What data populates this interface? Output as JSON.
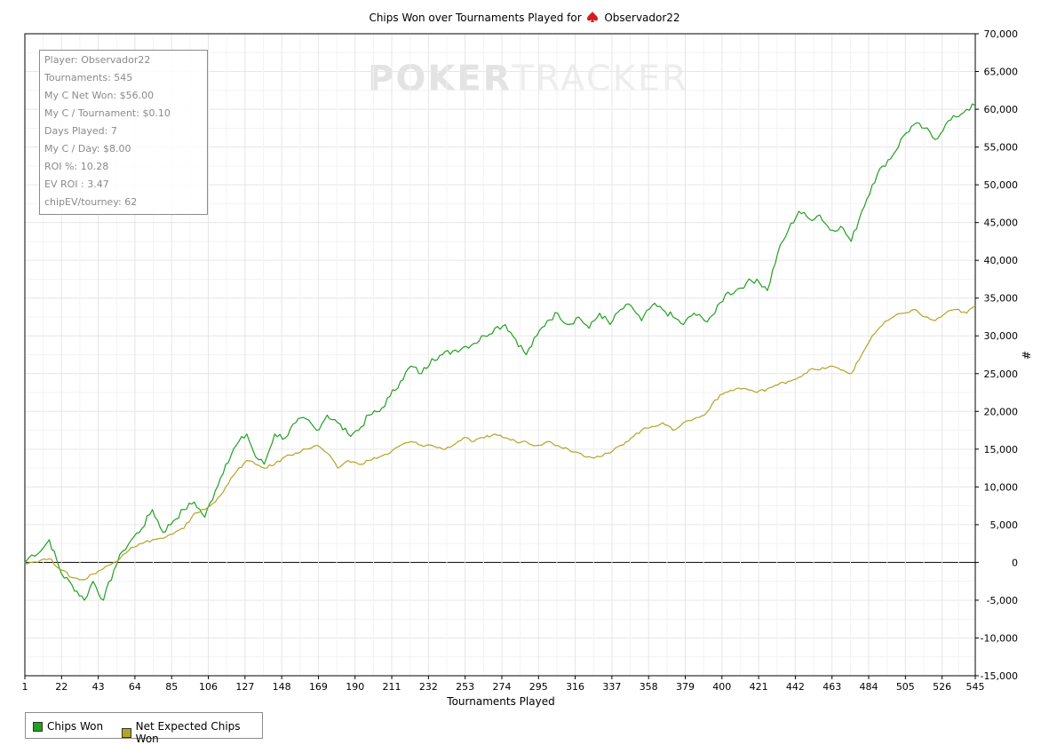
{
  "title_prefix": "Chips Won over Tournaments Played for",
  "title_player": "Observador22",
  "watermark": {
    "part1": "POKER",
    "part2": "TRACKER"
  },
  "stats": [
    "Player: Observador22",
    "Tournaments: 545",
    "My C Net Won: $56.00",
    "My C / Tournament: $0.10",
    "Days Played: 7",
    "My C / Day: $8.00",
    "ROI %: 10.28",
    "EV ROI : 3.47",
    "chipEV/tourney: 62"
  ],
  "colors": {
    "chips_won": "#22a022",
    "expected": "#b0a626",
    "grid": "#e6e6e6",
    "zero_line": "#000000"
  },
  "chart_data": {
    "type": "line",
    "xlabel": "Tournaments Played",
    "ylabel": "#",
    "xlim": [
      1,
      545
    ],
    "ylim": [
      -15000,
      70000
    ],
    "x_ticks": [
      1,
      22,
      43,
      64,
      85,
      106,
      127,
      148,
      169,
      190,
      211,
      232,
      253,
      274,
      295,
      316,
      337,
      358,
      379,
      400,
      421,
      442,
      463,
      484,
      505,
      526,
      545
    ],
    "y_ticks": [
      -15000,
      -10000,
      -5000,
      0,
      5000,
      10000,
      15000,
      20000,
      25000,
      30000,
      35000,
      40000,
      45000,
      50000,
      55000,
      60000,
      65000,
      70000
    ],
    "y_tick_labels": [
      "-15,000",
      "-10,000",
      "-5,000",
      "0",
      "5,000",
      "10,000",
      "15,000",
      "20,000",
      "25,000",
      "30,000",
      "35,000",
      "40,000",
      "45,000",
      "50,000",
      "55,000",
      "60,000",
      "65,000",
      "70,000"
    ],
    "grid": true,
    "legend_position": "bottom-left",
    "series": [
      {
        "name": "Chips Won",
        "x": [
          1,
          5,
          10,
          15,
          22,
          28,
          35,
          40,
          46,
          52,
          57,
          62,
          68,
          74,
          80,
          86,
          92,
          98,
          104,
          110,
          116,
          122,
          128,
          133,
          138,
          144,
          150,
          156,
          162,
          168,
          174,
          180,
          186,
          192,
          198,
          204,
          210,
          216,
          222,
          228,
          234,
          240,
          246,
          252,
          258,
          264,
          270,
          276,
          282,
          288,
          294,
          300,
          306,
          312,
          318,
          324,
          330,
          336,
          342,
          348,
          354,
          360,
          366,
          372,
          378,
          384,
          390,
          396,
          402,
          408,
          414,
          420,
          426,
          432,
          438,
          444,
          450,
          456,
          462,
          468,
          474,
          480,
          486,
          492,
          498,
          504,
          510,
          516,
          522,
          528,
          534,
          540,
          545
        ],
        "y": [
          0,
          1000,
          1500,
          3000,
          -1500,
          -3000,
          -5000,
          -2500,
          -5000,
          -1000,
          1500,
          3000,
          4500,
          7000,
          4000,
          5500,
          7000,
          8000,
          6000,
          9500,
          13000,
          15500,
          17000,
          14000,
          13000,
          17000,
          16500,
          18500,
          19000,
          17500,
          19500,
          18500,
          17000,
          17500,
          19500,
          20000,
          22000,
          24000,
          26000,
          25000,
          27000,
          27500,
          28000,
          28500,
          29000,
          30000,
          31000,
          31500,
          29500,
          27500,
          30000,
          32000,
          33000,
          31500,
          32500,
          31000,
          33000,
          31500,
          33500,
          34000,
          32000,
          34000,
          33500,
          32500,
          31500,
          33000,
          32000,
          33000,
          35500,
          36000,
          37000,
          37500,
          36000,
          41000,
          44000,
          46500,
          45500,
          46000,
          44000,
          44500,
          42500,
          46500,
          50000,
          52500,
          54000,
          56500,
          58000,
          57500,
          56000,
          58000,
          59000,
          60000,
          60500
        ]
      },
      {
        "name": "Net Expected Chips Won",
        "x": [
          1,
          5,
          10,
          15,
          22,
          28,
          35,
          40,
          46,
          52,
          57,
          62,
          68,
          74,
          80,
          86,
          92,
          98,
          104,
          110,
          116,
          122,
          128,
          133,
          138,
          144,
          150,
          156,
          162,
          168,
          174,
          180,
          186,
          192,
          198,
          204,
          210,
          216,
          222,
          228,
          234,
          240,
          246,
          252,
          258,
          264,
          270,
          276,
          282,
          288,
          294,
          300,
          306,
          312,
          318,
          324,
          330,
          336,
          342,
          348,
          354,
          360,
          366,
          372,
          378,
          384,
          390,
          396,
          402,
          408,
          414,
          420,
          426,
          432,
          438,
          444,
          450,
          456,
          462,
          468,
          474,
          480,
          486,
          492,
          498,
          504,
          510,
          516,
          522,
          528,
          534,
          540,
          545
        ],
        "y": [
          0,
          0,
          300,
          500,
          -1000,
          -2000,
          -2300,
          -1500,
          -800,
          0,
          1000,
          2000,
          2500,
          3000,
          3200,
          3800,
          4500,
          6500,
          7000,
          8000,
          10000,
          12000,
          13500,
          13000,
          12500,
          13000,
          14000,
          14500,
          15000,
          15500,
          14500,
          12500,
          13500,
          13000,
          13500,
          14000,
          14500,
          15500,
          16000,
          15500,
          15500,
          15000,
          15500,
          16500,
          16000,
          16500,
          17000,
          16500,
          16000,
          16000,
          15500,
          16000,
          15500,
          15000,
          14500,
          14000,
          14000,
          14500,
          15500,
          16500,
          17500,
          18000,
          18500,
          17500,
          18500,
          19000,
          19500,
          21500,
          22500,
          23000,
          23000,
          22500,
          23000,
          23500,
          24000,
          24500,
          25500,
          25500,
          26000,
          25500,
          25000,
          27500,
          30000,
          31500,
          32500,
          33000,
          33500,
          32500,
          32000,
          33000,
          33500,
          33000,
          34000
        ]
      }
    ]
  },
  "legend": {
    "items": [
      "Chips Won",
      "Net Expected Chips Won"
    ]
  }
}
